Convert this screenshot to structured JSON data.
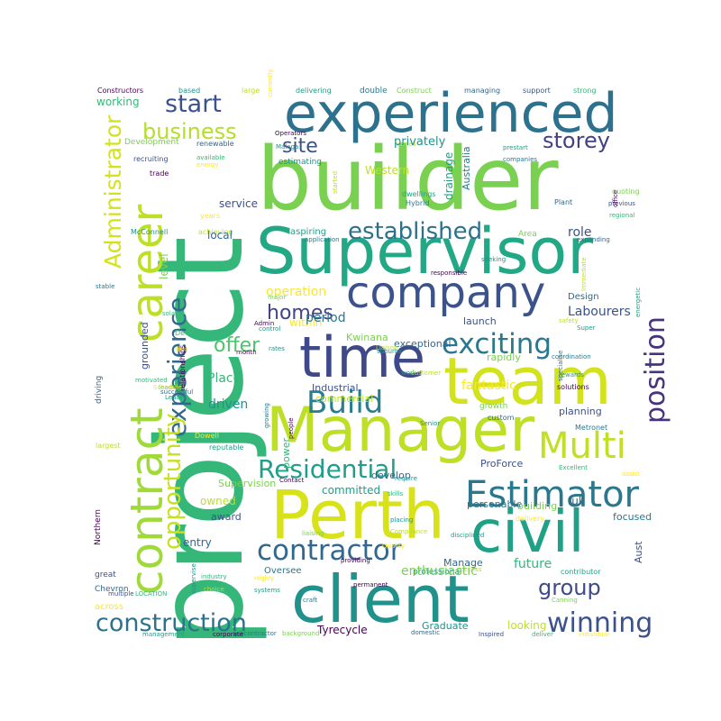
{
  "chart_data": {
    "type": "wordcloud",
    "title": "",
    "words": [
      {
        "text": "project",
        "weight": 100,
        "color": "#35b779"
      },
      {
        "text": "builder",
        "weight": 92,
        "color": "#7ad151"
      },
      {
        "text": "Supervisor",
        "weight": 80,
        "color": "#22a884"
      },
      {
        "text": "experienced",
        "weight": 76,
        "color": "#2c728e"
      },
      {
        "text": "team",
        "weight": 74,
        "color": "#d2e21b"
      },
      {
        "text": "Manager",
        "weight": 73,
        "color": "#bddf26"
      },
      {
        "text": "Perth",
        "weight": 71,
        "color": "#d8e219"
      },
      {
        "text": "client",
        "weight": 70,
        "color": "#21918c"
      },
      {
        "text": "company",
        "weight": 62,
        "color": "#3b528b"
      },
      {
        "text": "civil",
        "weight": 60,
        "color": "#1fa187"
      },
      {
        "text": "time",
        "weight": 58,
        "color": "#3e4989"
      },
      {
        "text": "contract",
        "weight": 56,
        "color": "#a0da39"
      },
      {
        "text": "career",
        "weight": 52,
        "color": "#bddf26"
      },
      {
        "text": "Estimator",
        "weight": 48,
        "color": "#2a788e"
      },
      {
        "text": "Multi",
        "weight": 44,
        "color": "#c2df23"
      },
      {
        "text": "contractor",
        "weight": 42,
        "color": "#31688e"
      },
      {
        "text": "construction",
        "weight": 40,
        "color": "#2c728e"
      },
      {
        "text": "Residential",
        "weight": 36,
        "color": "#1f9e89"
      },
      {
        "text": "position",
        "weight": 36,
        "color": "#46327e"
      },
      {
        "text": "Build",
        "weight": 36,
        "color": "#277f8e"
      },
      {
        "text": "exciting",
        "weight": 34,
        "color": "#2a788e"
      },
      {
        "text": "winning",
        "weight": 32,
        "color": "#3b528b"
      },
      {
        "text": "experience",
        "weight": 30,
        "color": "#31688e"
      },
      {
        "text": "opportunity",
        "weight": 30,
        "color": "#c8e020"
      },
      {
        "text": "Administrator",
        "weight": 28,
        "color": "#d5e21a"
      },
      {
        "text": "established",
        "weight": 28,
        "color": "#2d708e"
      },
      {
        "text": "business",
        "weight": 26,
        "color": "#b5de2b"
      },
      {
        "text": "start",
        "weight": 26,
        "color": "#3b528b"
      },
      {
        "text": "storey",
        "weight": 24,
        "color": "#424086"
      },
      {
        "text": "homes",
        "weight": 22,
        "color": "#414487"
      },
      {
        "text": "group",
        "weight": 22,
        "color": "#3e4a89"
      },
      {
        "text": "offer",
        "weight": 22,
        "color": "#4ec36b"
      },
      {
        "text": "site",
        "weight": 22,
        "color": "#3b528b"
      }
    ]
  },
  "small_words": [
    "Constructors",
    "based",
    "large",
    "delivering",
    "double",
    "Construct",
    "managing",
    "support",
    "strong",
    "currently",
    "Operators",
    "Malaga",
    "names",
    "prestart",
    "companies",
    "Development",
    "renewable",
    "recruiting",
    "available",
    "energy",
    "trade",
    "estimating",
    "started",
    "dwellings",
    "Hybrid",
    "quoting",
    "Plant",
    "previous",
    "regional",
    "years",
    "office",
    "McConnell",
    "achieving",
    "aspiring",
    "application",
    "Area",
    "expanding",
    "role",
    "industries",
    "operation",
    "responsible",
    "seeking",
    "Immediate",
    "energetic",
    "stable",
    "major",
    "Design",
    "Labourers",
    "solar",
    "within",
    "Admin",
    "control",
    "safety",
    "Super",
    "period",
    "Kwinana",
    "exceptional",
    "launch",
    "Developer",
    "first",
    "month",
    "rates",
    "Liaison",
    "suburbs",
    "coordination",
    "rapidly",
    "driving",
    "grounded",
    "motivated",
    "Scheduler",
    "relationships",
    "work",
    "customer",
    "rewards",
    "specialise",
    "leading",
    "successful",
    "Industrial",
    "Place",
    "fantastic",
    "solutions",
    "driven",
    "commercial",
    "Leader",
    "growing",
    "growth",
    "custom",
    "planning",
    "power",
    "Dowell",
    "people",
    "Senior",
    "largest",
    "reputable",
    "Metronet",
    "Supervision",
    "develop",
    "ProForce",
    "Excellent",
    "assist",
    "Contact",
    "require",
    "owned",
    "committed",
    "personable",
    "building",
    "full",
    "award",
    "skills",
    "delivery",
    "Northern",
    "placing",
    "Compliance",
    "disciplined",
    "focused",
    "liaising",
    "entry",
    "Aust",
    "future",
    "Quality",
    "providing",
    "professional",
    "success",
    "contributor",
    "Oversee",
    "enthusiastic",
    "Manage",
    "great",
    "industry",
    "Highly",
    "permanent",
    "supervise",
    "choice",
    "systems",
    "craft",
    "Canning",
    "Chevron",
    "multiple",
    "LOCATION",
    "across",
    "Tyrecycle",
    "Graduate",
    "looking",
    "management",
    "subcontractor",
    "background",
    "domestic",
    "Inspired",
    "deliver",
    "individual",
    "corporate",
    "privately",
    "Western",
    "drainage",
    "Australia",
    "level",
    "local",
    "service",
    "working",
    "opportunities",
    "administration",
    "Osborne",
    "Single",
    "well"
  ]
}
